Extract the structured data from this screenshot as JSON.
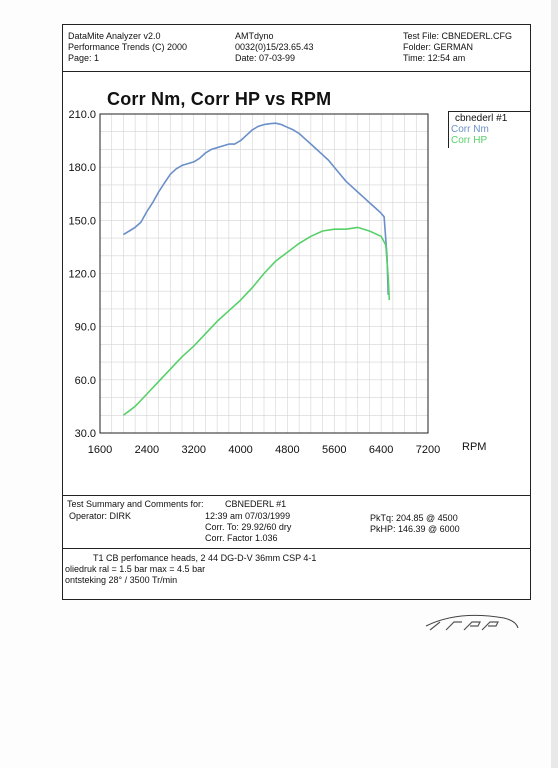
{
  "header": {
    "left": [
      "DataMite Analyzer v2.0",
      "Performance Trends (C) 2000",
      "Page:  1"
    ],
    "middle": [
      "AMTdyno",
      "0032(0)15/23.65.43",
      "Date: 07-03-99"
    ],
    "right": [
      "Test File: CBNEDERL.CFG",
      "Folder: GERMAN",
      "Time: 12:54 am"
    ]
  },
  "chart_data": {
    "type": "line",
    "title": "Corr Nm, Corr HP vs RPM",
    "xlabel": "RPM",
    "ylabel": "",
    "xlim": [
      1600,
      7200
    ],
    "ylim": [
      30,
      210
    ],
    "xticks": [
      "1600",
      "2400",
      "3200",
      "4000",
      "4800",
      "5600",
      "6400",
      "7200"
    ],
    "yticks": [
      "30.0",
      "60.0",
      "90.0",
      "120.0",
      "150.0",
      "180.0",
      "210.0"
    ],
    "grid": true,
    "legend": {
      "title": "cbnederl   #1",
      "placement": "right"
    },
    "series": [
      {
        "name": "Corr Nm",
        "color": "#6a8fc9",
        "x": [
          2000,
          2100,
          2200,
          2300,
          2400,
          2500,
          2600,
          2700,
          2800,
          2900,
          3000,
          3100,
          3200,
          3300,
          3400,
          3500,
          3600,
          3700,
          3800,
          3900,
          4000,
          4100,
          4200,
          4300,
          4400,
          4500,
          4600,
          4700,
          4800,
          4900,
          5000,
          5100,
          5200,
          5300,
          5400,
          5500,
          5600,
          5700,
          5800,
          5900,
          6000,
          6100,
          6200,
          6300,
          6400,
          6450,
          6500,
          6520
        ],
        "y": [
          142,
          144,
          146,
          149,
          155,
          160,
          166,
          171,
          176,
          179,
          181,
          182,
          183,
          185,
          188,
          190,
          191,
          192,
          193,
          193,
          195,
          198,
          201,
          203,
          204,
          204.5,
          204.8,
          204,
          202.5,
          201,
          199,
          196,
          193,
          190,
          187,
          184,
          180,
          176,
          172,
          169,
          166,
          163,
          160,
          157,
          154,
          152,
          130,
          108
        ]
      },
      {
        "name": "Corr HP",
        "color": "#58d06a",
        "x": [
          2000,
          2200,
          2400,
          2600,
          2800,
          3000,
          3200,
          3400,
          3600,
          3800,
          4000,
          4200,
          4400,
          4600,
          4800,
          5000,
          5200,
          5400,
          5600,
          5800,
          6000,
          6200,
          6400,
          6480,
          6520,
          6540
        ],
        "y": [
          40,
          45,
          52,
          59,
          66,
          73,
          79,
          86,
          93,
          99,
          105,
          112,
          120,
          127,
          132,
          137,
          141,
          144,
          145,
          145,
          146,
          144,
          141,
          136,
          118,
          105
        ]
      }
    ]
  },
  "summary": {
    "heading_label": "Test Summary and Comments for:",
    "heading_value": "CBNEDERL   #1",
    "operator": "Operator:  DIRK",
    "datetime": "12:39 am 07/03/1999",
    "corr_to": "Corr. To: 29.92/60 dry",
    "corr_factor": "Corr. Factor 1.036",
    "pktq": "PkTq: 204.85 @  4500",
    "pkhp": "PkHP: 146.39 @  6000",
    "comments": [
      "T1  CB perfomance heads, 2 44 DG-D-V 36mm  CSP 4-1",
      "oliedruk ral = 1.5 bar  max = 4.5 bar",
      "ontsteking 28° / 3500 Tr/min"
    ]
  }
}
